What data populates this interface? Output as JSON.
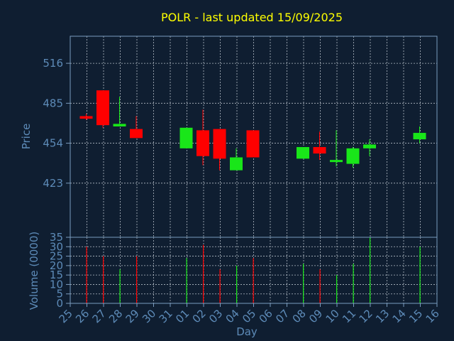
{
  "chart_data": {
    "type": "candlestick",
    "title": "POLR - last updated 15/09/2025",
    "xlabel": "Day",
    "colors": {
      "background": "#0f1e31",
      "axes": "#7a9cbe",
      "grid": "#d0d8e0",
      "up": "#19e619",
      "down": "#ff0000",
      "title": "#ffff00",
      "text": "#5d8bb8"
    },
    "x_ticks": [
      "25",
      "26",
      "27",
      "28",
      "29",
      "30",
      "31",
      "01",
      "02",
      "03",
      "04",
      "05",
      "06",
      "07",
      "08",
      "09",
      "10",
      "11",
      "12",
      "13",
      "14",
      "15",
      "16"
    ],
    "price_panel": {
      "ylabel": "Price",
      "ylim": [
        381,
        537
      ],
      "yticks": [
        423,
        454,
        485,
        516
      ],
      "candles": [
        {
          "day": "26",
          "open": 475,
          "high": 477,
          "low": 472,
          "close": 473
        },
        {
          "day": "27",
          "open": 495,
          "high": 495,
          "low": 466,
          "close": 468
        },
        {
          "day": "28",
          "open": 467,
          "high": 490,
          "low": 467,
          "close": 469
        },
        {
          "day": "29",
          "open": 465,
          "high": 475,
          "low": 458,
          "close": 458
        },
        {
          "day": "01",
          "open": 450,
          "high": 466,
          "low": 450,
          "close": 466
        },
        {
          "day": "02",
          "open": 464,
          "high": 480,
          "low": 437,
          "close": 444
        },
        {
          "day": "03",
          "open": 465,
          "high": 465,
          "low": 433,
          "close": 442
        },
        {
          "day": "04",
          "open": 433,
          "high": 450,
          "low": 433,
          "close": 443
        },
        {
          "day": "05",
          "open": 464,
          "high": 464,
          "low": 443,
          "close": 443
        },
        {
          "day": "08",
          "open": 442,
          "high": 451,
          "low": 442,
          "close": 451
        },
        {
          "day": "09",
          "open": 451,
          "high": 463,
          "low": 441,
          "close": 446
        },
        {
          "day": "10",
          "open": 440,
          "high": 464,
          "low": 436,
          "close": 441
        },
        {
          "day": "11",
          "open": 438,
          "high": 451,
          "low": 435,
          "close": 450
        },
        {
          "day": "12",
          "open": 450,
          "high": 457,
          "low": 444,
          "close": 453
        },
        {
          "day": "15",
          "open": 457,
          "high": 467,
          "low": 454,
          "close": 462
        }
      ]
    },
    "volume_panel": {
      "ylabel": "Volume (0000)",
      "ylim": [
        0,
        35
      ],
      "yticks": [
        0,
        5,
        10,
        15,
        20,
        25,
        30,
        35
      ],
      "bars": [
        {
          "day": "26",
          "value": 30,
          "direction": "down"
        },
        {
          "day": "27",
          "value": 25,
          "direction": "down"
        },
        {
          "day": "28",
          "value": 18,
          "direction": "up"
        },
        {
          "day": "29",
          "value": 25,
          "direction": "down"
        },
        {
          "day": "01",
          "value": 24,
          "direction": "up"
        },
        {
          "day": "02",
          "value": 31,
          "direction": "down"
        },
        {
          "day": "03",
          "value": 18,
          "direction": "down"
        },
        {
          "day": "04",
          "value": 20,
          "direction": "up"
        },
        {
          "day": "05",
          "value": 24,
          "direction": "down"
        },
        {
          "day": "08",
          "value": 21,
          "direction": "up"
        },
        {
          "day": "09",
          "value": 18,
          "direction": "down"
        },
        {
          "day": "10",
          "value": 15,
          "direction": "up"
        },
        {
          "day": "11",
          "value": 21,
          "direction": "up"
        },
        {
          "day": "12",
          "value": 35,
          "direction": "up"
        },
        {
          "day": "15",
          "value": 30,
          "direction": "up"
        }
      ]
    }
  }
}
